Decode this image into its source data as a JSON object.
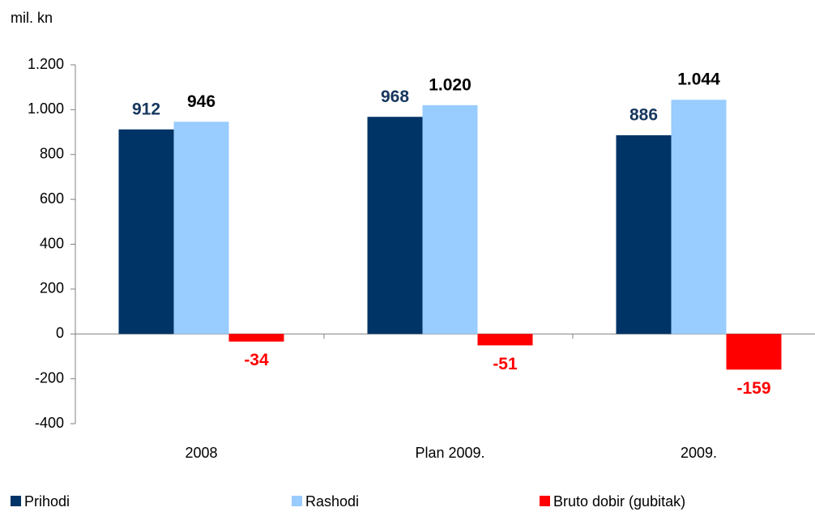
{
  "chart_data": {
    "type": "bar",
    "unit_label": "mil. kn",
    "categories": [
      "2008",
      "Plan 2009.",
      "2009."
    ],
    "series": [
      {
        "name": "Prihodi",
        "color": "#003366",
        "label_color": "#17375e",
        "values": [
          912,
          968,
          886
        ]
      },
      {
        "name": "Rashodi",
        "color": "#99ccff",
        "label_color": "#000000",
        "values": [
          946,
          1020,
          1044
        ],
        "value_labels": [
          "946",
          "1.020",
          "1.044"
        ]
      },
      {
        "name": "Bruto dobir (gubitak)",
        "color": "#ff0000",
        "label_color": "#ff0000",
        "values": [
          -34,
          -51,
          -159
        ]
      }
    ],
    "ylim": [
      -400,
      1200
    ],
    "yticks": [
      -400,
      -200,
      0,
      200,
      400,
      600,
      {
        "value": 800,
        "label": "800"
      },
      {
        "value": 1000,
        "label": "1.000"
      },
      {
        "value": 1200,
        "label": "1.200"
      }
    ],
    "grid": false,
    "legend": "bottom"
  }
}
